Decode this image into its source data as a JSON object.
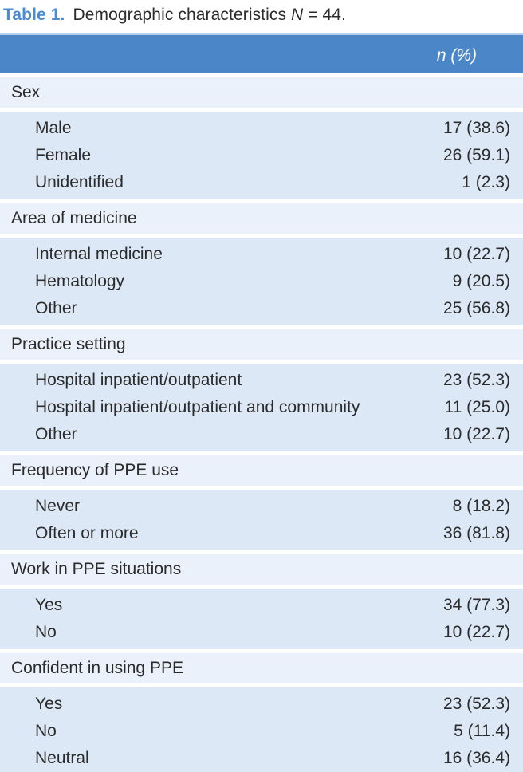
{
  "caption": {
    "table_label": "Table 1.",
    "title_text": "Demographic characteristics",
    "n_symbol": "N",
    "n_value": "= 44."
  },
  "table": {
    "column_header": "n (%)",
    "sections": [
      {
        "name": "Sex",
        "rows": [
          {
            "label": "Male",
            "value": "17 (38.6)"
          },
          {
            "label": "Female",
            "value": "26 (59.1)"
          },
          {
            "label": "Unidentified",
            "value": "1 (2.3)"
          }
        ]
      },
      {
        "name": "Area of medicine",
        "rows": [
          {
            "label": "Internal medicine",
            "value": "10 (22.7)"
          },
          {
            "label": "Hematology",
            "value": "9 (20.5)"
          },
          {
            "label": "Other",
            "value": "25 (56.8)"
          }
        ]
      },
      {
        "name": "Practice setting",
        "rows": [
          {
            "label": "Hospital inpatient/outpatient",
            "value": "23 (52.3)"
          },
          {
            "label": "Hospital inpatient/outpatient and community",
            "value": "11 (25.0)"
          },
          {
            "label": "Other",
            "value": "10 (22.7)"
          }
        ]
      },
      {
        "name": "Frequency of PPE use",
        "rows": [
          {
            "label": "Never",
            "value": "8 (18.2)"
          },
          {
            "label": "Often or more",
            "value": "36 (81.8)"
          }
        ]
      },
      {
        "name": "Work in PPE situations",
        "rows": [
          {
            "label": "Yes",
            "value": "34 (77.3)"
          },
          {
            "label": "No",
            "value": "10 (22.7)"
          }
        ]
      },
      {
        "name": "Confident in using PPE",
        "rows": [
          {
            "label": "Yes",
            "value": "23 (52.3)"
          },
          {
            "label": "No",
            "value": "5 (11.4)"
          },
          {
            "label": "Neutral",
            "value": "16 (36.4)"
          }
        ]
      }
    ]
  },
  "colors": {
    "accent_blue": "#4a8cd2",
    "header_bar_blue": "#4b87c8",
    "section_band_light": "#eaf1fa",
    "data_band_blue": "#dce8f6",
    "text": "#2b2b2b"
  }
}
